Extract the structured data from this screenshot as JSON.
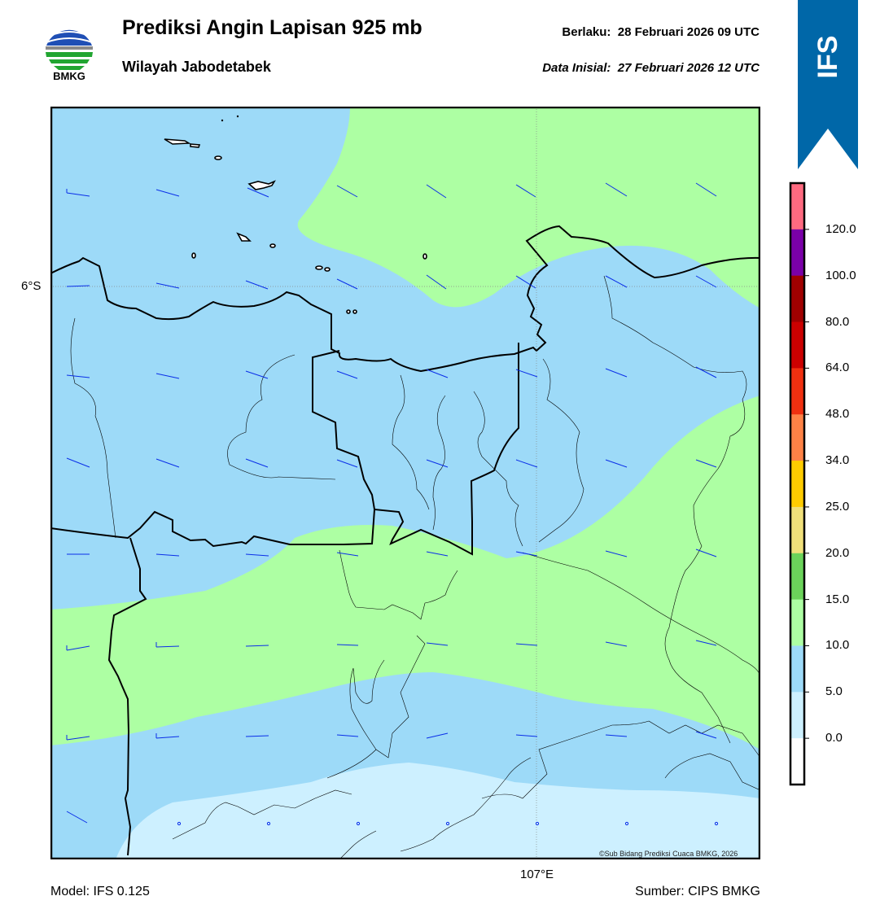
{
  "header": {
    "title": "Prediksi Angin Lapisan 925 mb",
    "subtitle": "Wilayah Jabodetabek",
    "valid_time": "Berlaku:  28 Februari 2026 09 UTC",
    "initial_time": "Data Inisial:  27 Februari 2026 12 UTC"
  },
  "logo": {
    "text": "BMKG",
    "icon": "bmkg-logo-icon"
  },
  "model_badge": {
    "text": "IFS",
    "color": "#0067a8"
  },
  "map": {
    "lat_label": "6°S",
    "lon_label": "107°E",
    "credit": "©Sub Bidang Prediksi Cuaca BMKG, 2026",
    "fill_colors": {
      "0-5": "#cdf0ff",
      "5-10": "#9ddaf8",
      "10-15": "#adffa3"
    },
    "wind_barb_color": "#0a2ee8"
  },
  "colorbar": {
    "unit_ticks": [
      "0.0",
      "5.0",
      "10.0",
      "15.0",
      "20.0",
      "25.0",
      "34.0",
      "48.0",
      "64.0",
      "80.0",
      "100.0",
      "120.0"
    ],
    "colors": [
      "#ffffff",
      "#cdf0ff",
      "#9ddaf8",
      "#adffa3",
      "#6bd35a",
      "#f0e07a",
      "#ffcc00",
      "#ff8246",
      "#f03010",
      "#cc0000",
      "#a00000",
      "#7a00a8",
      "#ff6a80"
    ]
  },
  "footer": {
    "model": "Model: IFS 0.125",
    "source": "Sumber: CIPS BMKG"
  }
}
